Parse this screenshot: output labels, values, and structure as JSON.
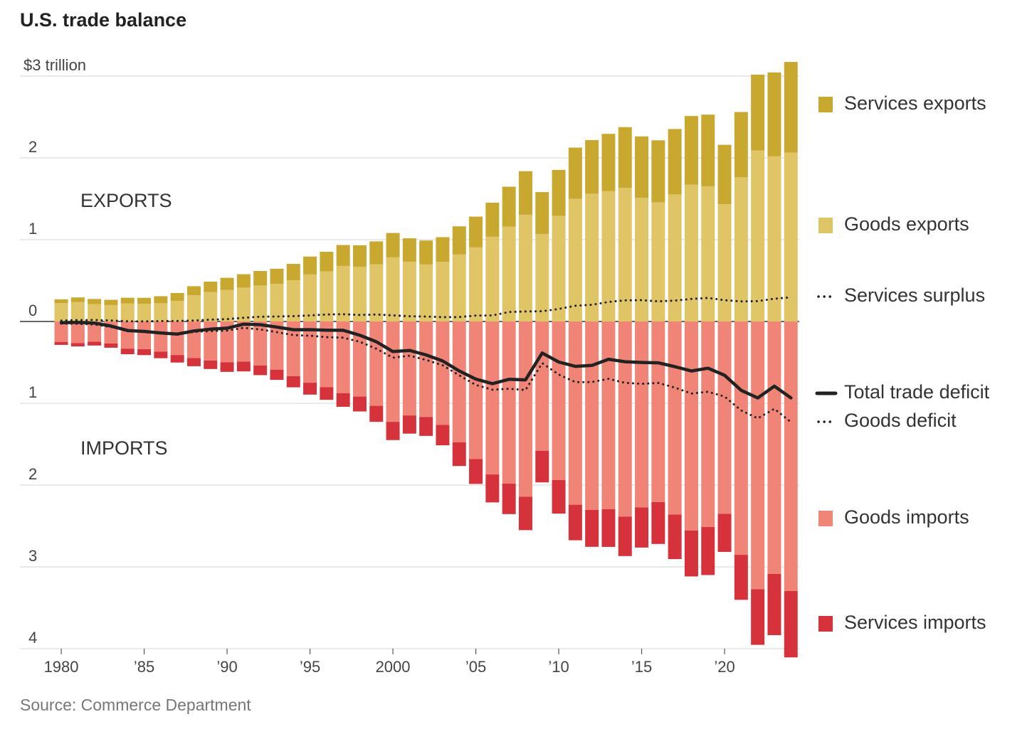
{
  "chart_data": {
    "type": "bar",
    "title": "U.S. trade balance",
    "source": "Source: Commerce Department",
    "annotations": [
      "EXPORTS",
      "IMPORTS"
    ],
    "x": [
      1980,
      1981,
      1982,
      1983,
      1984,
      1985,
      1986,
      1987,
      1988,
      1989,
      1990,
      1991,
      1992,
      1993,
      1994,
      1995,
      1996,
      1997,
      1998,
      1999,
      2000,
      2001,
      2002,
      2003,
      2004,
      2005,
      2006,
      2007,
      2008,
      2009,
      2010,
      2011,
      2012,
      2013,
      2014,
      2015,
      2016,
      2017,
      2018,
      2019,
      2020,
      2021,
      2022,
      2023,
      2024
    ],
    "xlim": [
      1979.5,
      2024.5
    ],
    "xticks": [
      1980,
      {
        "value": 1985,
        "label": "’85"
      },
      {
        "value": 1990,
        "label": "’90"
      },
      {
        "value": 1995,
        "label": "’95"
      },
      2000,
      {
        "value": 2005,
        "label": "’05"
      },
      {
        "value": 2010,
        "label": "’10"
      },
      {
        "value": 2015,
        "label": "’15"
      },
      {
        "value": 2020,
        "label": "’20"
      }
    ],
    "ylim": [
      -4,
      3.2
    ],
    "yticks": [
      {
        "value": -4,
        "label": "4"
      },
      {
        "value": -3,
        "label": "3"
      },
      {
        "value": -2,
        "label": "2"
      },
      {
        "value": -1,
        "label": "1"
      },
      0,
      1,
      2,
      {
        "value": 3,
        "label": "$3 trillion"
      }
    ],
    "grid": true,
    "legend": "right",
    "series": [
      {
        "name": "Services exports",
        "type": "bar",
        "color": "#c8a82f",
        "values": [
          0.047,
          0.057,
          0.064,
          0.064,
          0.071,
          0.074,
          0.086,
          0.098,
          0.111,
          0.127,
          0.147,
          0.164,
          0.177,
          0.186,
          0.201,
          0.219,
          0.24,
          0.256,
          0.262,
          0.281,
          0.298,
          0.286,
          0.293,
          0.303,
          0.344,
          0.376,
          0.416,
          0.488,
          0.532,
          0.512,
          0.563,
          0.627,
          0.656,
          0.701,
          0.741,
          0.752,
          0.758,
          0.8,
          0.838,
          0.876,
          0.726,
          0.796,
          0.929,
          1.026,
          1.108
        ]
      },
      {
        "name": "Goods exports",
        "type": "bar",
        "color": "#e0c566",
        "values": [
          0.224,
          0.237,
          0.211,
          0.201,
          0.219,
          0.215,
          0.223,
          0.25,
          0.32,
          0.36,
          0.387,
          0.414,
          0.44,
          0.459,
          0.503,
          0.575,
          0.612,
          0.679,
          0.67,
          0.698,
          0.784,
          0.731,
          0.697,
          0.728,
          0.819,
          0.906,
          1.036,
          1.16,
          1.305,
          1.07,
          1.29,
          1.499,
          1.562,
          1.593,
          1.635,
          1.511,
          1.457,
          1.553,
          1.674,
          1.653,
          1.434,
          1.765,
          2.089,
          2.019,
          2.065
        ]
      },
      {
        "name": "Services surplus",
        "type": "line",
        "style": "dotted",
        "color": "#222",
        "values": [
          0.011,
          0.017,
          0.018,
          0.012,
          0.003,
          0.001,
          0.005,
          0.006,
          0.011,
          0.023,
          0.029,
          0.045,
          0.058,
          0.061,
          0.065,
          0.074,
          0.085,
          0.089,
          0.08,
          0.085,
          0.075,
          0.064,
          0.061,
          0.053,
          0.054,
          0.072,
          0.074,
          0.116,
          0.123,
          0.125,
          0.153,
          0.192,
          0.204,
          0.239,
          0.258,
          0.261,
          0.246,
          0.256,
          0.276,
          0.288,
          0.26,
          0.246,
          0.249,
          0.278,
          0.296
        ]
      },
      {
        "name": "Total trade deficit",
        "type": "line",
        "style": "solid",
        "color": "#222",
        "values": [
          -0.015,
          -0.011,
          -0.019,
          -0.056,
          -0.11,
          -0.122,
          -0.14,
          -0.154,
          -0.116,
          -0.094,
          -0.082,
          -0.032,
          -0.039,
          -0.069,
          -0.101,
          -0.1,
          -0.106,
          -0.108,
          -0.168,
          -0.248,
          -0.368,
          -0.354,
          -0.409,
          -0.483,
          -0.604,
          -0.704,
          -0.76,
          -0.707,
          -0.714,
          -0.385,
          -0.496,
          -0.549,
          -0.537,
          -0.462,
          -0.492,
          -0.501,
          -0.505,
          -0.552,
          -0.605,
          -0.571,
          -0.657,
          -0.842,
          -0.935,
          -0.79,
          -0.934
        ]
      },
      {
        "name": "Goods deficit",
        "type": "line",
        "style": "dotted",
        "color": "#222",
        "values": [
          -0.026,
          -0.028,
          -0.037,
          -0.068,
          -0.113,
          -0.123,
          -0.145,
          -0.16,
          -0.127,
          -0.117,
          -0.111,
          -0.077,
          -0.097,
          -0.13,
          -0.166,
          -0.174,
          -0.191,
          -0.197,
          -0.248,
          -0.333,
          -0.443,
          -0.418,
          -0.47,
          -0.536,
          -0.658,
          -0.776,
          -0.834,
          -0.823,
          -0.837,
          -0.51,
          -0.649,
          -0.741,
          -0.741,
          -0.701,
          -0.75,
          -0.762,
          -0.751,
          -0.808,
          -0.881,
          -0.859,
          -0.917,
          -1.088,
          -1.184,
          -1.068,
          -1.23
        ]
      },
      {
        "name": "Goods imports",
        "type": "bar",
        "color": "#f08577",
        "values": [
          -0.25,
          -0.265,
          -0.248,
          -0.269,
          -0.332,
          -0.338,
          -0.368,
          -0.41,
          -0.447,
          -0.477,
          -0.498,
          -0.491,
          -0.537,
          -0.589,
          -0.669,
          -0.749,
          -0.803,
          -0.876,
          -0.918,
          -1.031,
          -1.227,
          -1.149,
          -1.167,
          -1.264,
          -1.477,
          -1.682,
          -1.87,
          -1.983,
          -2.142,
          -1.58,
          -1.939,
          -2.24,
          -2.303,
          -2.294,
          -2.385,
          -2.273,
          -2.208,
          -2.361,
          -2.555,
          -2.512,
          -2.351,
          -2.853,
          -3.273,
          -3.087,
          -3.295
        ]
      },
      {
        "name": "Services imports",
        "type": "bar",
        "color": "#d6323c",
        "values": [
          -0.036,
          -0.04,
          -0.046,
          -0.052,
          -0.068,
          -0.073,
          -0.081,
          -0.092,
          -0.1,
          -0.104,
          -0.118,
          -0.119,
          -0.119,
          -0.125,
          -0.136,
          -0.145,
          -0.155,
          -0.167,
          -0.182,
          -0.196,
          -0.223,
          -0.222,
          -0.232,
          -0.25,
          -0.29,
          -0.304,
          -0.342,
          -0.372,
          -0.409,
          -0.387,
          -0.41,
          -0.435,
          -0.452,
          -0.462,
          -0.483,
          -0.491,
          -0.512,
          -0.544,
          -0.562,
          -0.588,
          -0.466,
          -0.55,
          -0.68,
          -0.748,
          -0.812
        ]
      }
    ]
  }
}
